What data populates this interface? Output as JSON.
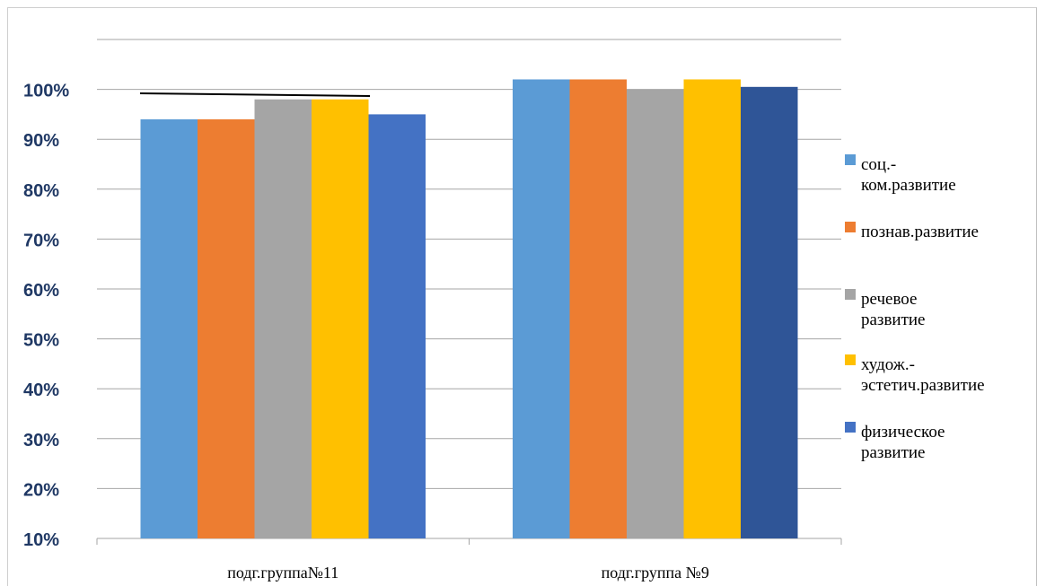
{
  "chart_data": {
    "type": "bar",
    "categories": [
      "подг.группа№11",
      "подг.группа №9"
    ],
    "series": [
      {
        "name": "соц.-ком.развитие",
        "label_lines": [
          "соц.-",
          "ком.развитие"
        ],
        "color": "#5b9bd5",
        "values": [
          94,
          102
        ]
      },
      {
        "name": "познав.развитие",
        "label_lines": [
          "познав.развитие"
        ],
        "color": "#ed7d31",
        "values": [
          94,
          102
        ]
      },
      {
        "name": "речевое развитие",
        "label_lines": [
          "речевое",
          "развитие"
        ],
        "color": "#a5a5a5",
        "values": [
          98,
          100
        ]
      },
      {
        "name": "худож.-эстетич.развитие",
        "label_lines": [
          "худож.-",
          "эстетич.развитие"
        ],
        "color": "#ffc000",
        "values": [
          98,
          102
        ]
      },
      {
        "name": "физическое развитие",
        "label_lines": [
          "физическое",
          "развитие"
        ],
        "color": "#4472c4",
        "color_alt": "#2f5597",
        "values": [
          95,
          100.5
        ]
      }
    ],
    "yticks": [
      "10%",
      "20%",
      "30%",
      "40%",
      "50%",
      "60%",
      "70%",
      "80%",
      "90%",
      "100%"
    ],
    "ylim": [
      10,
      110
    ],
    "grid": true,
    "legend": "right"
  }
}
